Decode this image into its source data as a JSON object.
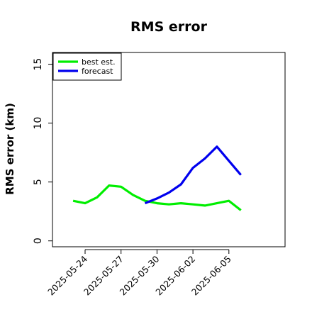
{
  "chart_data": {
    "type": "line",
    "title": "RMS error",
    "xlabel": "",
    "ylabel": "RMS error (km)",
    "x_ticks": [
      "2025-05-24",
      "2025-05-27",
      "2025-05-30",
      "2025-06-02",
      "2025-06-05"
    ],
    "y_ticks": [
      0,
      5,
      10,
      15
    ],
    "ylim": [
      -0.5,
      16
    ],
    "grid": false,
    "legend_position": "top-left",
    "series": [
      {
        "name": "best est.",
        "color": "#00ee00",
        "x": [
          "2025-05-23",
          "2025-05-24",
          "2025-05-25",
          "2025-05-26",
          "2025-05-27",
          "2025-05-28",
          "2025-05-29",
          "2025-05-30",
          "2025-05-31",
          "2025-06-01",
          "2025-06-02",
          "2025-06-03",
          "2025-06-04",
          "2025-06-05",
          "2025-06-06"
        ],
        "y": [
          3.4,
          3.2,
          3.7,
          4.7,
          4.6,
          3.9,
          3.4,
          3.2,
          3.1,
          3.2,
          3.1,
          3.0,
          3.2,
          3.4,
          2.6
        ]
      },
      {
        "name": "forecast",
        "color": "#0000ee",
        "x": [
          "2025-05-29",
          "2025-05-30",
          "2025-05-31",
          "2025-06-01",
          "2025-06-02",
          "2025-06-03",
          "2025-06-04",
          "2025-06-05",
          "2025-06-06"
        ],
        "y": [
          3.2,
          3.6,
          4.1,
          4.8,
          6.2,
          7.0,
          8.0,
          6.8,
          5.6
        ]
      }
    ]
  }
}
